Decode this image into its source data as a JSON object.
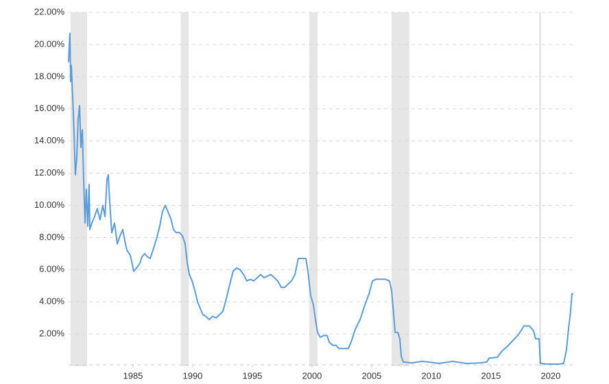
{
  "chart_data": {
    "type": "line",
    "color": "#5b9bd8",
    "shade_color": "#e6e6e6",
    "grid": true,
    "xlim": [
      1979.6,
      2021.9
    ],
    "ylim": [
      0,
      22
    ],
    "xticks": [
      1985,
      1990,
      1995,
      2000,
      2005,
      2010,
      2015,
      2020
    ],
    "yticks": [
      {
        "value": 2,
        "label": "2.00%"
      },
      {
        "value": 4,
        "label": "4.00%"
      },
      {
        "value": 6,
        "label": "6.00%"
      },
      {
        "value": 8,
        "label": "8.00%"
      },
      {
        "value": 10,
        "label": "10.00%"
      },
      {
        "value": 12,
        "label": "12.00%"
      },
      {
        "value": 14,
        "label": "14.00%"
      },
      {
        "value": 16,
        "label": "16.00%"
      },
      {
        "value": 18,
        "label": "18.00%"
      },
      {
        "value": 20,
        "label": "20.00%"
      },
      {
        "value": 22,
        "label": "22.00%"
      }
    ],
    "shaded_spans": [
      [
        1979.77,
        1981.15
      ],
      [
        1989.0,
        1989.66
      ],
      [
        1999.77,
        2000.46
      ],
      [
        2006.67,
        2008.16
      ],
      [
        2019.03,
        2019.2
      ]
    ],
    "x": [
      1979.6,
      1979.66,
      1979.71,
      1979.77,
      1979.83,
      1979.94,
      1980.06,
      1980.17,
      1980.29,
      1980.4,
      1980.52,
      1980.63,
      1980.75,
      1980.86,
      1980.98,
      1981.09,
      1981.21,
      1981.32,
      1981.38,
      1981.55,
      1981.78,
      1982.01,
      1982.24,
      1982.47,
      1982.65,
      1982.82,
      1982.93,
      1983.05,
      1983.22,
      1983.45,
      1983.68,
      1983.91,
      1984.14,
      1984.31,
      1984.49,
      1984.77,
      1985.06,
      1985.29,
      1985.58,
      1985.75,
      1985.98,
      1986.21,
      1986.44,
      1986.67,
      1986.96,
      1987.24,
      1987.47,
      1987.7,
      1987.93,
      1988.16,
      1988.39,
      1988.62,
      1988.91,
      1989.14,
      1989.37,
      1989.55,
      1989.72,
      1989.95,
      1990.18,
      1990.41,
      1990.63,
      1990.86,
      1991.09,
      1991.38,
      1991.67,
      1991.96,
      1992.24,
      1992.53,
      1992.82,
      1993.11,
      1993.39,
      1993.68,
      1993.97,
      1994.26,
      1994.54,
      1994.83,
      1995.12,
      1995.4,
      1995.69,
      1995.98,
      1996.27,
      1996.55,
      1996.84,
      1997.13,
      1997.42,
      1997.7,
      1997.99,
      1998.28,
      1998.57,
      1998.85,
      1999.14,
      1999.49,
      1999.66,
      1999.89,
      2000.12,
      2000.29,
      2000.46,
      2000.69,
      2000.98,
      2001.27,
      2001.44,
      2001.72,
      2002.01,
      2002.24,
      2002.59,
      2003.05,
      2003.28,
      2003.63,
      2004.03,
      2004.43,
      2004.78,
      2005.07,
      2005.35,
      2005.75,
      2006.16,
      2006.5,
      2006.67,
      2006.84,
      2006.96,
      2007.19,
      2007.36,
      2007.48,
      2007.65,
      2008.34,
      2009.2,
      2009.77,
      2010.63,
      2011.78,
      2012.93,
      2014.08,
      2014.66,
      2014.83,
      2015.52,
      2015.92,
      2016.38,
      2016.84,
      2017.3,
      2017.76,
      2018.22,
      2018.56,
      2018.74,
      2019.03,
      2019.14,
      2019.83,
      2020.69,
      2021.09,
      2021.32,
      2021.49,
      2021.67,
      2021.78,
      2021.9
    ],
    "values": [
      18.9,
      20.0,
      20.7,
      17.7,
      18.7,
      16.8,
      14.5,
      11.9,
      13.0,
      15.3,
      16.2,
      13.6,
      14.7,
      11.7,
      8.9,
      11.0,
      8.7,
      11.3,
      8.5,
      8.9,
      9.3,
      9.8,
      9.1,
      10.0,
      9.3,
      11.6,
      11.9,
      10.2,
      8.3,
      8.9,
      7.6,
      8.1,
      8.5,
      7.8,
      7.2,
      6.9,
      5.9,
      6.1,
      6.4,
      6.8,
      7.0,
      6.8,
      6.7,
      7.2,
      7.9,
      8.7,
      9.6,
      10.0,
      9.6,
      9.2,
      8.5,
      8.3,
      8.3,
      8.1,
      7.6,
      6.4,
      5.7,
      5.3,
      4.7,
      4.0,
      3.6,
      3.2,
      3.1,
      2.9,
      3.1,
      3.0,
      3.2,
      3.4,
      4.2,
      5.1,
      5.9,
      6.1,
      6.0,
      5.7,
      5.3,
      5.4,
      5.3,
      5.5,
      5.7,
      5.5,
      5.6,
      5.7,
      5.5,
      5.3,
      4.9,
      4.9,
      5.1,
      5.3,
      5.7,
      6.7,
      6.7,
      6.7,
      5.9,
      4.4,
      3.8,
      2.9,
      2.1,
      1.8,
      1.9,
      1.9,
      1.5,
      1.3,
      1.3,
      1.1,
      1.1,
      1.1,
      1.5,
      2.3,
      2.9,
      3.8,
      4.5,
      5.3,
      5.4,
      5.4,
      5.4,
      5.3,
      4.7,
      3.2,
      2.1,
      2.1,
      1.7,
      0.6,
      0.26,
      0.2,
      0.3,
      0.26,
      0.17,
      0.3,
      0.17,
      0.2,
      0.26,
      0.5,
      0.55,
      0.94,
      1.24,
      1.6,
      1.96,
      2.5,
      2.5,
      2.2,
      1.7,
      1.7,
      0.17,
      0.13,
      0.13,
      0.17,
      1.0,
      2.3,
      3.4,
      4.5,
      4.5
    ]
  }
}
